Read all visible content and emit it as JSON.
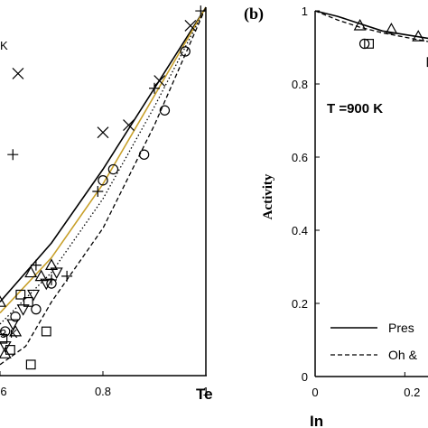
{
  "chart_data": [
    {
      "type": "line",
      "panel": "a (cropped)",
      "title": "",
      "xlabel": "Te",
      "ylabel": "",
      "xlim": [
        0.6,
        1.0
      ],
      "ylim": [
        0.0,
        1.0
      ],
      "x_tick_labels": [
        "6",
        "0.8",
        "1"
      ],
      "annotations": [
        {
          "text": "K",
          "pos": "top-left"
        },
        {
          "text": "3 K",
          "pos": "bottom-left"
        }
      ],
      "series": [
        {
          "style": "solid-black",
          "x": [
            0.6,
            0.7,
            0.8,
            0.9,
            1.0
          ],
          "y": [
            0.2,
            0.36,
            0.56,
            0.78,
            1.0
          ]
        },
        {
          "style": "solid-gold",
          "x": [
            0.6,
            0.7,
            0.8,
            0.9,
            1.0
          ],
          "y": [
            0.17,
            0.32,
            0.52,
            0.76,
            1.0
          ]
        },
        {
          "style": "dotted",
          "x": [
            0.6,
            0.7,
            0.8,
            0.9,
            1.0
          ],
          "y": [
            0.14,
            0.28,
            0.48,
            0.73,
            1.0
          ]
        },
        {
          "style": "dashed",
          "x": [
            0.6,
            0.65,
            0.7,
            0.8,
            0.9,
            1.0
          ],
          "y": [
            0.03,
            0.08,
            0.2,
            0.4,
            0.68,
            1.0
          ]
        }
      ],
      "markers": [
        {
          "symbol": "plus",
          "x": [
            0.625,
            0.67,
            0.7,
            0.73,
            0.79,
            0.9,
            0.99
          ],
          "y": [
            0.6,
            0.3,
            0.26,
            0.27,
            0.5,
            0.78,
            0.99
          ]
        },
        {
          "symbol": "cross",
          "x": [
            0.635,
            0.8,
            0.85,
            0.91,
            0.97
          ],
          "y": [
            0.82,
            0.66,
            0.68,
            0.8,
            0.95
          ]
        },
        {
          "symbol": "triangle",
          "x": [
            0.6,
            0.61,
            0.63,
            0.66,
            0.68,
            0.7
          ],
          "y": [
            0.2,
            0.06,
            0.12,
            0.28,
            0.27,
            0.3
          ]
        },
        {
          "symbol": "del",
          "x": [
            0.61,
            0.625,
            0.645,
            0.665,
            0.69,
            0.71
          ],
          "y": [
            0.08,
            0.14,
            0.18,
            0.22,
            0.25,
            0.28
          ]
        },
        {
          "symbol": "circle",
          "x": [
            0.61,
            0.63,
            0.67,
            0.7,
            0.8,
            0.82,
            0.88,
            0.92,
            0.96
          ],
          "y": [
            0.12,
            0.16,
            0.18,
            0.25,
            0.53,
            0.56,
            0.6,
            0.72,
            0.88
          ]
        },
        {
          "symbol": "square",
          "x": [
            0.605,
            0.62,
            0.64,
            0.655,
            0.66,
            0.69
          ],
          "y": [
            0.1,
            0.07,
            0.22,
            0.2,
            0.03,
            0.12
          ]
        }
      ]
    },
    {
      "type": "line",
      "panel_label": "(b)",
      "title": "",
      "annotation": "T =900 K",
      "xlabel": "In",
      "ylabel": "Activity",
      "xlim": [
        0.0,
        0.3
      ],
      "ylim": [
        0.0,
        1.0
      ],
      "x_tick_labels": [
        "0",
        "0.2"
      ],
      "y_tick_labels": [
        "0",
        "0.2",
        "0.4",
        "0.6",
        "0.8",
        "1"
      ],
      "legend": [
        {
          "label": "Pres",
          "style": "solid"
        },
        {
          "label": "Oh &",
          "style": "dashed"
        }
      ],
      "legend_position": "bottom-right",
      "series": [
        {
          "style": "solid",
          "x": [
            0.0,
            0.05,
            0.1,
            0.15,
            0.2,
            0.3
          ],
          "y": [
            1.0,
            0.985,
            0.965,
            0.945,
            0.935,
            0.915
          ]
        },
        {
          "style": "dashed",
          "x": [
            0.0,
            0.05,
            0.1,
            0.15,
            0.2,
            0.3
          ],
          "y": [
            1.0,
            0.975,
            0.955,
            0.94,
            0.928,
            0.905
          ]
        }
      ],
      "markers": [
        {
          "symbol": "triangle",
          "x": [
            0.1,
            0.17,
            0.23
          ],
          "y": [
            0.96,
            0.95,
            0.93
          ]
        },
        {
          "symbol": "circle",
          "x": [
            0.11
          ],
          "y": [
            0.91
          ]
        },
        {
          "symbol": "square",
          "x": [
            0.12,
            0.26
          ],
          "y": [
            0.91,
            0.86
          ]
        }
      ]
    }
  ]
}
